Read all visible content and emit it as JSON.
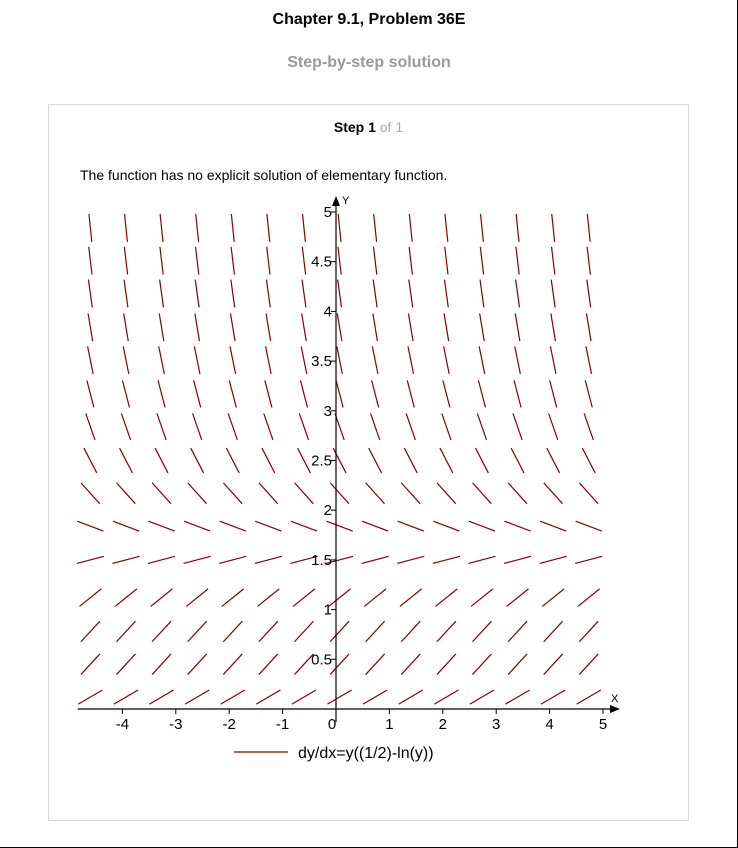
{
  "header": {
    "chapter_title": "Chapter 9.1, Problem 36E",
    "subtitle": "Step-by-step solution"
  },
  "step": {
    "label": "Step 1",
    "of_label": "of 1",
    "description": "The function has no explicit solution of elementary function."
  },
  "chart_data": {
    "type": "direction-field",
    "equation": "dy/dx=y((1/2)-ln(y))",
    "xlabel": "X",
    "ylabel": "Y",
    "xlim": [
      -4.8,
      5.0
    ],
    "ylim": [
      0.0,
      5.0
    ],
    "x_ticks": [
      -4,
      -3,
      -2,
      -1,
      0,
      1,
      2,
      3,
      4,
      5
    ],
    "x_tick_labels": [
      "-4",
      "-3",
      "-2",
      "-1",
      "0",
      "1",
      "2",
      "3",
      "4",
      "5"
    ],
    "y_ticks": [
      0.5,
      1,
      1.5,
      2,
      2.5,
      3,
      3.5,
      4,
      4.5,
      5
    ],
    "y_tick_labels": [
      "0.5",
      "1",
      "1.5",
      "2",
      "2.5",
      "3",
      "3.5",
      "4",
      "4.5",
      "5"
    ],
    "grid_x": [
      -4.6,
      -3.933,
      -3.267,
      -2.6,
      -1.933,
      -1.267,
      -0.6,
      0.067,
      0.733,
      1.4,
      2.067,
      2.733,
      3.4,
      4.067,
      4.733
    ],
    "grid_y": [
      0.12,
      0.45,
      0.78,
      1.12,
      1.5,
      1.84,
      2.17,
      2.5,
      2.84,
      3.17,
      3.51,
      3.84,
      4.18,
      4.51,
      4.84
    ],
    "series": [
      {
        "name": "dy/dx=y((1/2)-ln(y))",
        "color": "#8b0000"
      }
    ],
    "legend_position": "bottom-center",
    "grid": false
  }
}
